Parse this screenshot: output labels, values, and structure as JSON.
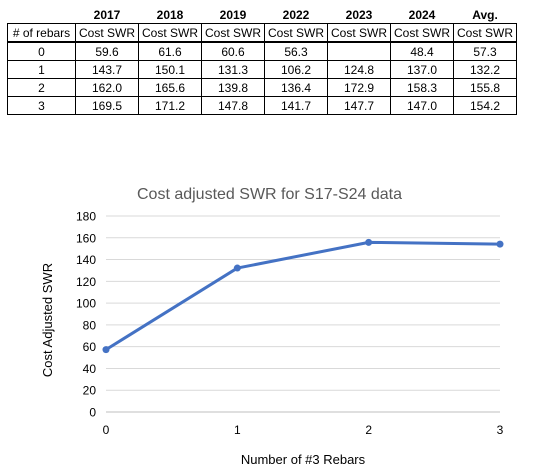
{
  "table": {
    "years": [
      "2017",
      "2018",
      "2019",
      "2022",
      "2023",
      "2024",
      "Avg."
    ],
    "header_row": [
      "# of rebars",
      "Cost SWR",
      "Cost SWR",
      "Cost SWR",
      "Cost SWR",
      "Cost SWR",
      "Cost SWR",
      "Cost SWR"
    ],
    "rows": [
      [
        "0",
        "59.6",
        "61.6",
        "60.6",
        "56.3",
        "",
        "48.4",
        "57.3"
      ],
      [
        "1",
        "143.7",
        "150.1",
        "131.3",
        "106.2",
        "124.8",
        "137.0",
        "132.2"
      ],
      [
        "2",
        "162.0",
        "165.6",
        "139.8",
        "136.4",
        "172.9",
        "158.3",
        "155.8"
      ],
      [
        "3",
        "169.5",
        "171.2",
        "147.8",
        "141.7",
        "147.7",
        "147.0",
        "154.2"
      ]
    ]
  },
  "chart_data": {
    "type": "line",
    "title": "Cost adjusted SWR for S17-S24 data",
    "xlabel": "Number of #3 Rebars",
    "ylabel": "Cost Adjusted SWR",
    "x": [
      0,
      1,
      2,
      3
    ],
    "series": [
      {
        "values": [
          57.3,
          132.2,
          155.8,
          154.2
        ],
        "color": "#4472C4"
      }
    ],
    "xticks": [
      "0",
      "1",
      "2",
      "3"
    ],
    "yticks": [
      "0",
      "20",
      "40",
      "60",
      "80",
      "100",
      "120",
      "140",
      "160",
      "180"
    ],
    "ylim": [
      0,
      180
    ],
    "xlim": [
      0,
      3
    ],
    "grid": true,
    "legend": "none"
  }
}
